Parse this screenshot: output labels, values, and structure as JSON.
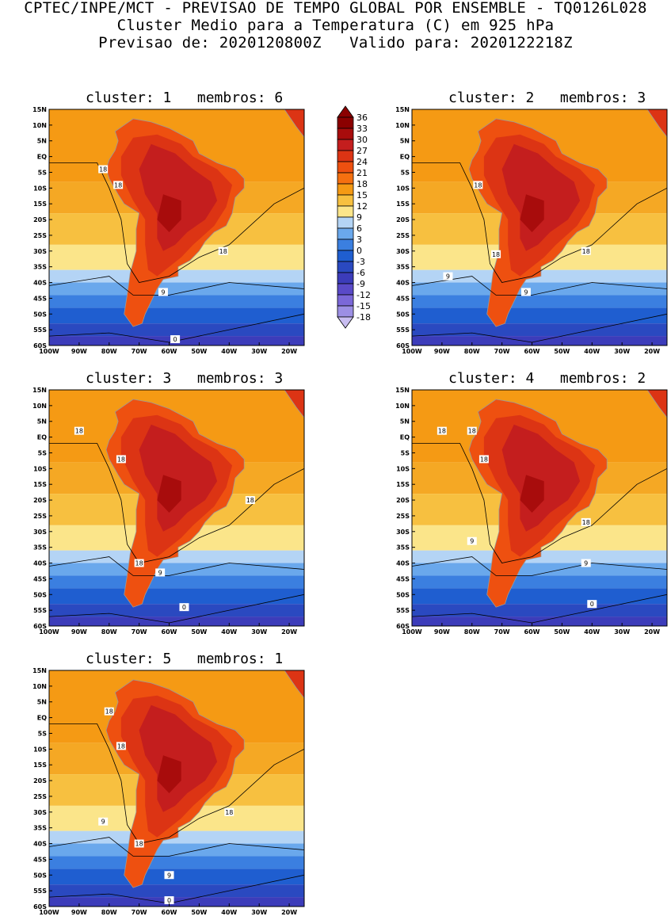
{
  "header": {
    "line1": "CPTEC/INPE/MCT - PREVISAO DE TEMPO GLOBAL POR ENSEMBLE - TQ0126L028",
    "line2": "Cluster Medio para a Temperatura (C) em 925 hPa",
    "line3": "Previsao de: 2020120800Z   Valido para: 2020122218Z"
  },
  "axes": {
    "lat_labels": [
      "15N",
      "10N",
      "5N",
      "EQ",
      "5S",
      "10S",
      "15S",
      "20S",
      "25S",
      "30S",
      "35S",
      "40S",
      "45S",
      "50S",
      "55S",
      "60S"
    ],
    "lon_labels": [
      "100W",
      "90W",
      "80W",
      "70W",
      "60W",
      "50W",
      "40W",
      "30W",
      "20W"
    ]
  },
  "colorbar": {
    "labels": [
      "36",
      "33",
      "30",
      "27",
      "24",
      "21",
      "18",
      "15",
      "12",
      "9",
      "6",
      "3",
      "0",
      "-3",
      "-6",
      "-9",
      "-12",
      "-15",
      "-18"
    ],
    "colors": [
      "#8b0000",
      "#a80c0c",
      "#c41e1e",
      "#dc3414",
      "#ee5010",
      "#f57010",
      "#f59a14",
      "#f7c040",
      "#fbe58a",
      "#b4d4f5",
      "#6aa8ec",
      "#3b7fe0",
      "#1f5ed0",
      "#2a49c0",
      "#3c3cba",
      "#5a4ac8",
      "#7b68d8",
      "#9c8fe4",
      "#c8bdf0"
    ]
  },
  "panels": [
    {
      "title": "cluster: 1   membros: 6",
      "contour_labels": [
        "18",
        "18",
        "18",
        "9",
        "0"
      ]
    },
    {
      "title": "cluster: 2   membros: 3",
      "contour_labels": [
        "18",
        "18",
        "18",
        "9",
        "9"
      ]
    },
    {
      "title": "cluster: 3   membros: 3",
      "contour_labels": [
        "18",
        "18",
        "18",
        "18",
        "9",
        "0"
      ]
    },
    {
      "title": "cluster: 4   membros: 2",
      "contour_labels": [
        "18",
        "18",
        "18",
        "18",
        "9",
        "9",
        "0"
      ]
    },
    {
      "title": "cluster: 5   membros: 1",
      "contour_labels": [
        "18",
        "18",
        "18",
        "9",
        "18",
        "9",
        "0"
      ]
    }
  ]
}
